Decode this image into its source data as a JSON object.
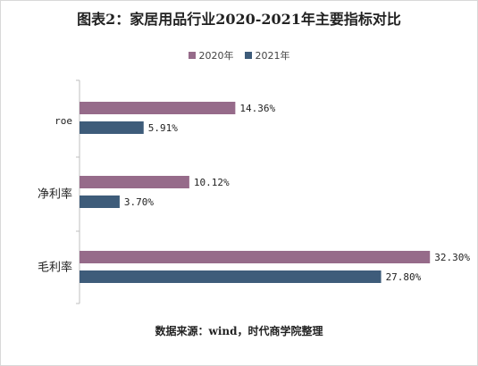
{
  "chart_data": {
    "type": "bar",
    "orientation": "horizontal",
    "title": "图表2：家居用品行业2020-2021年主要指标对比",
    "categories": [
      "roe",
      "净利率",
      "毛利率"
    ],
    "series": [
      {
        "name": "2020年",
        "values": [
          14.36,
          10.12,
          32.3
        ],
        "labels": [
          "14.36%",
          "10.12%",
          "32.30%"
        ],
        "color": "#966B8A"
      },
      {
        "name": "2021年",
        "values": [
          5.91,
          3.7,
          27.8
        ],
        "labels": [
          "5.91%",
          "3.70%",
          "27.80%"
        ],
        "color": "#3E5C7A"
      }
    ],
    "xlim": [
      0,
      35
    ],
    "legend_position": "top-center",
    "grid": false,
    "source_note": "数据来源：wind，时代商学院整理"
  }
}
